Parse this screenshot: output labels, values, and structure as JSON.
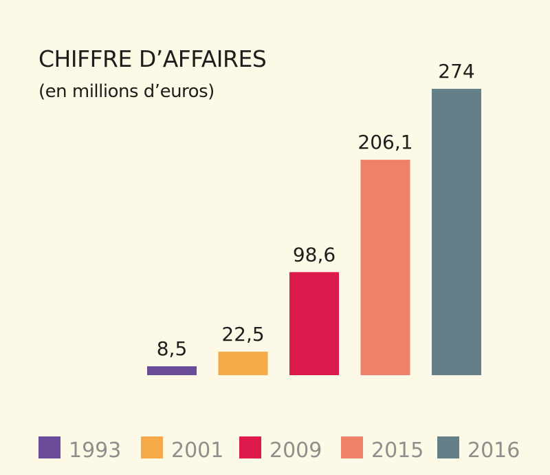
{
  "chart_data": {
    "type": "bar",
    "title": "CHIFFRE D’AFFAIRES",
    "subtitle": "(en millions d’euros)",
    "categories": [
      "1993",
      "2001",
      "2009",
      "2015",
      "2016"
    ],
    "values": [
      8.5,
      22.5,
      98.6,
      206.1,
      274
    ],
    "value_labels": [
      "8,5",
      "22,5",
      "98,6",
      "206,1",
      "274"
    ],
    "colors": [
      "#6b4c9a",
      "#f5a948",
      "#dc1a4b",
      "#ef806a",
      "#638089"
    ],
    "ylim": [
      0,
      274
    ],
    "grid": false,
    "legend": "bottom"
  }
}
